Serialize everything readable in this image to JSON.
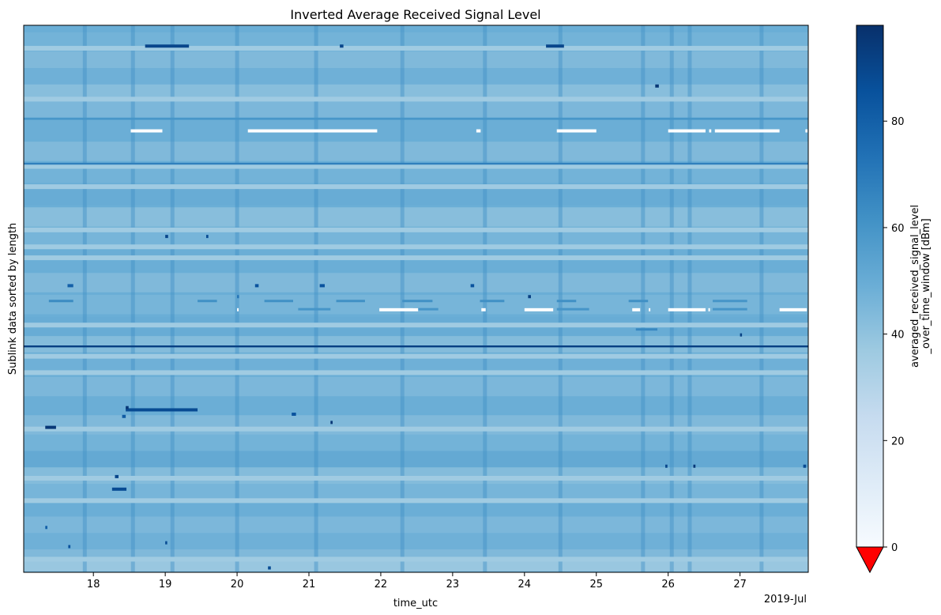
{
  "chart_data": {
    "type": "heatmap",
    "title": "Inverted Average Received Signal Level",
    "xlabel": "time_utc",
    "ylabel": "Sublink data sorted by length",
    "x_offset_label": "2019-Jul",
    "x_tick_labels": [
      "18",
      "19",
      "20",
      "21",
      "22",
      "23",
      "24",
      "25",
      "26",
      "27"
    ],
    "x_tick_values": [
      18,
      19,
      20,
      21,
      22,
      23,
      24,
      25,
      26,
      27
    ],
    "xlim": [
      17.03,
      27.95
    ],
    "ylim": [
      0,
      1
    ],
    "colorbar": {
      "label_line1": "averaged_received_signal_level",
      "label_line2": "_over_time_window [dBm]",
      "tick_labels": [
        "0",
        "20",
        "40",
        "60",
        "80"
      ],
      "tick_values": [
        0,
        20,
        40,
        60,
        80
      ],
      "range": [
        0,
        98
      ],
      "colormap": "Blues",
      "extend": "min",
      "extend_color": "#ff0000"
    },
    "background_bands": [
      {
        "y": 0.02,
        "v": 38
      },
      {
        "y": 0.04,
        "v": 44
      },
      {
        "y": 0.06,
        "v": 48
      },
      {
        "y": 0.09,
        "v": 45
      },
      {
        "y": 0.12,
        "v": 49
      },
      {
        "y": 0.15,
        "v": 46
      },
      {
        "y": 0.18,
        "v": 43
      },
      {
        "y": 0.21,
        "v": 51
      },
      {
        "y": 0.24,
        "v": 47
      },
      {
        "y": 0.27,
        "v": 44
      },
      {
        "y": 0.31,
        "v": 49
      },
      {
        "y": 0.34,
        "v": 45
      },
      {
        "y": 0.38,
        "v": 48
      },
      {
        "y": 0.42,
        "v": 43
      },
      {
        "y": 0.45,
        "v": 50
      },
      {
        "y": 0.49,
        "v": 46
      },
      {
        "y": 0.53,
        "v": 44
      },
      {
        "y": 0.57,
        "v": 49
      },
      {
        "y": 0.61,
        "v": 46
      },
      {
        "y": 0.65,
        "v": 42
      },
      {
        "y": 0.69,
        "v": 50
      },
      {
        "y": 0.73,
        "v": 47
      },
      {
        "y": 0.77,
        "v": 44
      },
      {
        "y": 0.81,
        "v": 49
      },
      {
        "y": 0.85,
        "v": 45
      },
      {
        "y": 0.88,
        "v": 42
      },
      {
        "y": 0.91,
        "v": 48
      },
      {
        "y": 0.94,
        "v": 44
      },
      {
        "y": 0.97,
        "v": 47
      }
    ],
    "light_rows": [
      0.024,
      0.131,
      0.172,
      0.262,
      0.365,
      0.395,
      0.452,
      0.575,
      0.595,
      0.626,
      0.705,
      0.742,
      0.865,
      0.958
    ],
    "strong_rows": [
      {
        "y": 0.413,
        "v": 92
      },
      {
        "y": 0.747,
        "v": 68
      },
      {
        "y": 0.829,
        "v": 60
      }
    ],
    "vertical_stripes": [
      17.88,
      18.55,
      19.1,
      20.0,
      21.1,
      22.3,
      23.45,
      24.5,
      25.65,
      26.05,
      26.3,
      27.3
    ],
    "missing_segments": [
      {
        "y": 0.807,
        "x0": 18.52,
        "x1": 18.96
      },
      {
        "y": 0.807,
        "x0": 20.15,
        "x1": 21.95
      },
      {
        "y": 0.807,
        "x0": 23.33,
        "x1": 23.39
      },
      {
        "y": 0.807,
        "x0": 24.45,
        "x1": 25.0
      },
      {
        "y": 0.807,
        "x0": 26.0,
        "x1": 26.52
      },
      {
        "y": 0.807,
        "x0": 26.57,
        "x1": 26.6
      },
      {
        "y": 0.807,
        "x0": 26.65,
        "x1": 27.55
      },
      {
        "y": 0.807,
        "x0": 27.91,
        "x1": 27.94
      },
      {
        "y": 0.48,
        "x0": 21.98,
        "x1": 22.52
      },
      {
        "y": 0.48,
        "x0": 23.4,
        "x1": 23.46
      },
      {
        "y": 0.48,
        "x0": 24.0,
        "x1": 24.4
      },
      {
        "y": 0.48,
        "x0": 25.5,
        "x1": 25.61
      },
      {
        "y": 0.48,
        "x0": 25.73,
        "x1": 25.75
      },
      {
        "y": 0.48,
        "x0": 26.0,
        "x1": 26.52
      },
      {
        "y": 0.48,
        "x0": 26.56,
        "x1": 26.58
      },
      {
        "y": 0.48,
        "x0": 27.55,
        "x1": 27.93
      },
      {
        "y": 0.48,
        "x0": 20.0,
        "x1": 20.02
      }
    ],
    "high_segments": [
      {
        "y": 0.962,
        "x0": 18.72,
        "x1": 19.33,
        "v": 90
      },
      {
        "y": 0.962,
        "x0": 24.3,
        "x1": 24.55,
        "v": 90
      },
      {
        "y": 0.962,
        "x0": 21.43,
        "x1": 21.48,
        "v": 90
      },
      {
        "y": 0.297,
        "x0": 18.45,
        "x1": 19.45,
        "v": 88
      },
      {
        "y": 0.301,
        "x0": 18.45,
        "x1": 18.49,
        "v": 95
      },
      {
        "y": 0.265,
        "x0": 17.33,
        "x1": 17.48,
        "v": 95
      },
      {
        "y": 0.152,
        "x0": 18.26,
        "x1": 18.46,
        "v": 88
      },
      {
        "y": 0.524,
        "x0": 17.64,
        "x1": 17.72,
        "v": 80
      },
      {
        "y": 0.524,
        "x0": 20.25,
        "x1": 20.3,
        "v": 85
      },
      {
        "y": 0.524,
        "x0": 21.15,
        "x1": 21.22,
        "v": 85
      },
      {
        "y": 0.524,
        "x0": 23.25,
        "x1": 23.3,
        "v": 85
      },
      {
        "y": 0.504,
        "x0": 24.05,
        "x1": 24.09,
        "v": 92
      },
      {
        "y": 0.504,
        "x0": 20.0,
        "x1": 20.02,
        "v": 72
      },
      {
        "y": 0.289,
        "x0": 20.76,
        "x1": 20.82,
        "v": 85
      },
      {
        "y": 0.889,
        "x0": 25.82,
        "x1": 25.87,
        "v": 95
      },
      {
        "y": 0.274,
        "x0": 21.3,
        "x1": 21.33,
        "v": 95
      },
      {
        "y": 0.285,
        "x0": 18.4,
        "x1": 18.45,
        "v": 82
      },
      {
        "y": 0.194,
        "x0": 26.35,
        "x1": 26.38,
        "v": 95
      },
      {
        "y": 0.194,
        "x0": 25.96,
        "x1": 25.99,
        "v": 90
      },
      {
        "y": 0.194,
        "x0": 27.88,
        "x1": 27.92,
        "v": 88
      },
      {
        "y": 0.175,
        "x0": 18.3,
        "x1": 18.35,
        "v": 90
      },
      {
        "y": 0.614,
        "x0": 19.0,
        "x1": 19.04,
        "v": 90
      },
      {
        "y": 0.614,
        "x0": 19.57,
        "x1": 19.6,
        "v": 88
      },
      {
        "y": 0.434,
        "x0": 27.0,
        "x1": 27.02,
        "v": 92
      },
      {
        "y": 0.047,
        "x0": 17.65,
        "x1": 17.68,
        "v": 85
      },
      {
        "y": 0.008,
        "x0": 20.43,
        "x1": 20.47,
        "v": 88
      },
      {
        "y": 0.082,
        "x0": 17.33,
        "x1": 17.36,
        "v": 80
      },
      {
        "y": 0.054,
        "x0": 19.0,
        "x1": 19.02,
        "v": 88
      }
    ],
    "medium_segments": [
      {
        "y": 0.496,
        "x0": 17.38,
        "x1": 17.72,
        "v": 64
      },
      {
        "y": 0.496,
        "x0": 19.45,
        "x1": 19.72,
        "v": 62
      },
      {
        "y": 0.496,
        "x0": 20.38,
        "x1": 20.78,
        "v": 62
      },
      {
        "y": 0.496,
        "x0": 21.38,
        "x1": 21.78,
        "v": 62
      },
      {
        "y": 0.496,
        "x0": 22.3,
        "x1": 22.72,
        "v": 62
      },
      {
        "y": 0.496,
        "x0": 23.38,
        "x1": 23.72,
        "v": 62
      },
      {
        "y": 0.496,
        "x0": 24.45,
        "x1": 24.72,
        "v": 62
      },
      {
        "y": 0.496,
        "x0": 25.45,
        "x1": 25.72,
        "v": 62
      },
      {
        "y": 0.496,
        "x0": 26.62,
        "x1": 27.1,
        "v": 60
      },
      {
        "y": 0.481,
        "x0": 22.45,
        "x1": 22.8,
        "v": 60
      },
      {
        "y": 0.481,
        "x0": 24.45,
        "x1": 24.9,
        "v": 60
      },
      {
        "y": 0.481,
        "x0": 26.62,
        "x1": 27.1,
        "v": 60
      },
      {
        "y": 0.481,
        "x0": 20.85,
        "x1": 21.3,
        "v": 60
      },
      {
        "y": 0.444,
        "x0": 25.55,
        "x1": 25.85,
        "v": 65
      }
    ]
  }
}
